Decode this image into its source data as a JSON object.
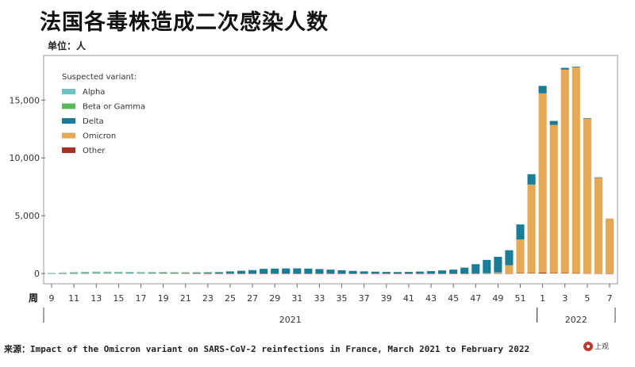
{
  "header": {
    "title": "法国各毒株造成二次感染人数",
    "unit": "单位：人"
  },
  "footer": {
    "source": "来源：Impact of the Omicron variant on SARS-CoV-2 reinfections in France, March 2021 to February 2022",
    "logo_text": "上观"
  },
  "chart_data": {
    "type": "bar",
    "stacked": true,
    "legend_title": "Suspected variant:",
    "legend_position": "top-left",
    "grid": false,
    "ylim": [
      0,
      18500
    ],
    "yticks": [
      0,
      5000,
      10000,
      15000
    ],
    "ytick_labels": [
      "0",
      "5,000",
      "10,000",
      "15,000"
    ],
    "x_prefix_label": "周",
    "categories": [
      "9",
      "10",
      "11",
      "12",
      "13",
      "14",
      "15",
      "16",
      "17",
      "18",
      "19",
      "20",
      "21",
      "22",
      "23",
      "24",
      "25",
      "26",
      "27",
      "28",
      "29",
      "30",
      "31",
      "32",
      "33",
      "34",
      "35",
      "36",
      "37",
      "38",
      "39",
      "40",
      "41",
      "42",
      "43",
      "44",
      "45",
      "46",
      "47",
      "48",
      "49",
      "50",
      "51",
      "52",
      "1",
      "2",
      "3",
      "4",
      "5",
      "6",
      "7"
    ],
    "xtick_labels": [
      "9",
      "11",
      "13",
      "15",
      "17",
      "19",
      "21",
      "23",
      "25",
      "27",
      "29",
      "31",
      "33",
      "35",
      "37",
      "39",
      "41",
      "43",
      "45",
      "47",
      "49",
      "51",
      "1",
      "3",
      "5",
      "7"
    ],
    "years": [
      {
        "label": "2021",
        "from": "9",
        "to": "52"
      },
      {
        "label": "2022",
        "from": "1",
        "to": "7"
      }
    ],
    "series": [
      {
        "name": "Alpha",
        "color": "#6cc3c3",
        "values": [
          50,
          70,
          90,
          100,
          110,
          100,
          90,
          80,
          70,
          60,
          50,
          40,
          30,
          20,
          15,
          10,
          5,
          3,
          2,
          0,
          0,
          0,
          0,
          0,
          0,
          0,
          0,
          0,
          0,
          0,
          0,
          0,
          0,
          0,
          0,
          0,
          0,
          0,
          0,
          0,
          0,
          0,
          0,
          0,
          0,
          0,
          0,
          0,
          0,
          0,
          0
        ]
      },
      {
        "name": "Beta or Gamma",
        "color": "#5cb85c",
        "values": [
          5,
          10,
          15,
          20,
          20,
          20,
          15,
          15,
          10,
          10,
          10,
          8,
          5,
          5,
          3,
          2,
          0,
          0,
          0,
          0,
          0,
          0,
          0,
          0,
          0,
          0,
          0,
          0,
          0,
          0,
          0,
          0,
          0,
          0,
          0,
          0,
          0,
          0,
          0,
          0,
          0,
          0,
          0,
          0,
          0,
          0,
          0,
          0,
          0,
          0,
          0
        ]
      },
      {
        "name": "Delta",
        "color": "#1b7c96",
        "values": [
          0,
          0,
          0,
          0,
          0,
          0,
          0,
          5,
          10,
          20,
          30,
          40,
          50,
          70,
          90,
          110,
          180,
          240,
          300,
          400,
          420,
          430,
          440,
          420,
          380,
          330,
          280,
          220,
          180,
          150,
          130,
          120,
          130,
          160,
          200,
          260,
          330,
          500,
          800,
          1150,
          1350,
          1300,
          1300,
          900,
          650,
          350,
          150,
          60,
          20,
          5,
          0
        ]
      },
      {
        "name": "Omicron",
        "color": "#e5a855",
        "values": [
          0,
          0,
          0,
          0,
          0,
          0,
          0,
          0,
          0,
          0,
          0,
          0,
          0,
          0,
          0,
          0,
          0,
          0,
          0,
          0,
          0,
          0,
          0,
          0,
          0,
          0,
          0,
          0,
          0,
          0,
          0,
          0,
          0,
          0,
          0,
          0,
          0,
          0,
          0,
          20,
          80,
          700,
          2900,
          7650,
          15500,
          12800,
          17600,
          17800,
          13400,
          8300,
          4750
        ]
      },
      {
        "name": "Other",
        "color": "#a93226",
        "values": [
          0,
          5,
          10,
          20,
          30,
          30,
          30,
          30,
          30,
          30,
          30,
          25,
          20,
          15,
          10,
          8,
          5,
          3,
          2,
          2,
          2,
          2,
          2,
          2,
          2,
          2,
          2,
          2,
          2,
          2,
          2,
          2,
          2,
          2,
          2,
          2,
          2,
          2,
          5,
          5,
          10,
          10,
          40,
          40,
          80,
          50,
          40,
          30,
          20,
          10,
          5
        ]
      }
    ]
  }
}
